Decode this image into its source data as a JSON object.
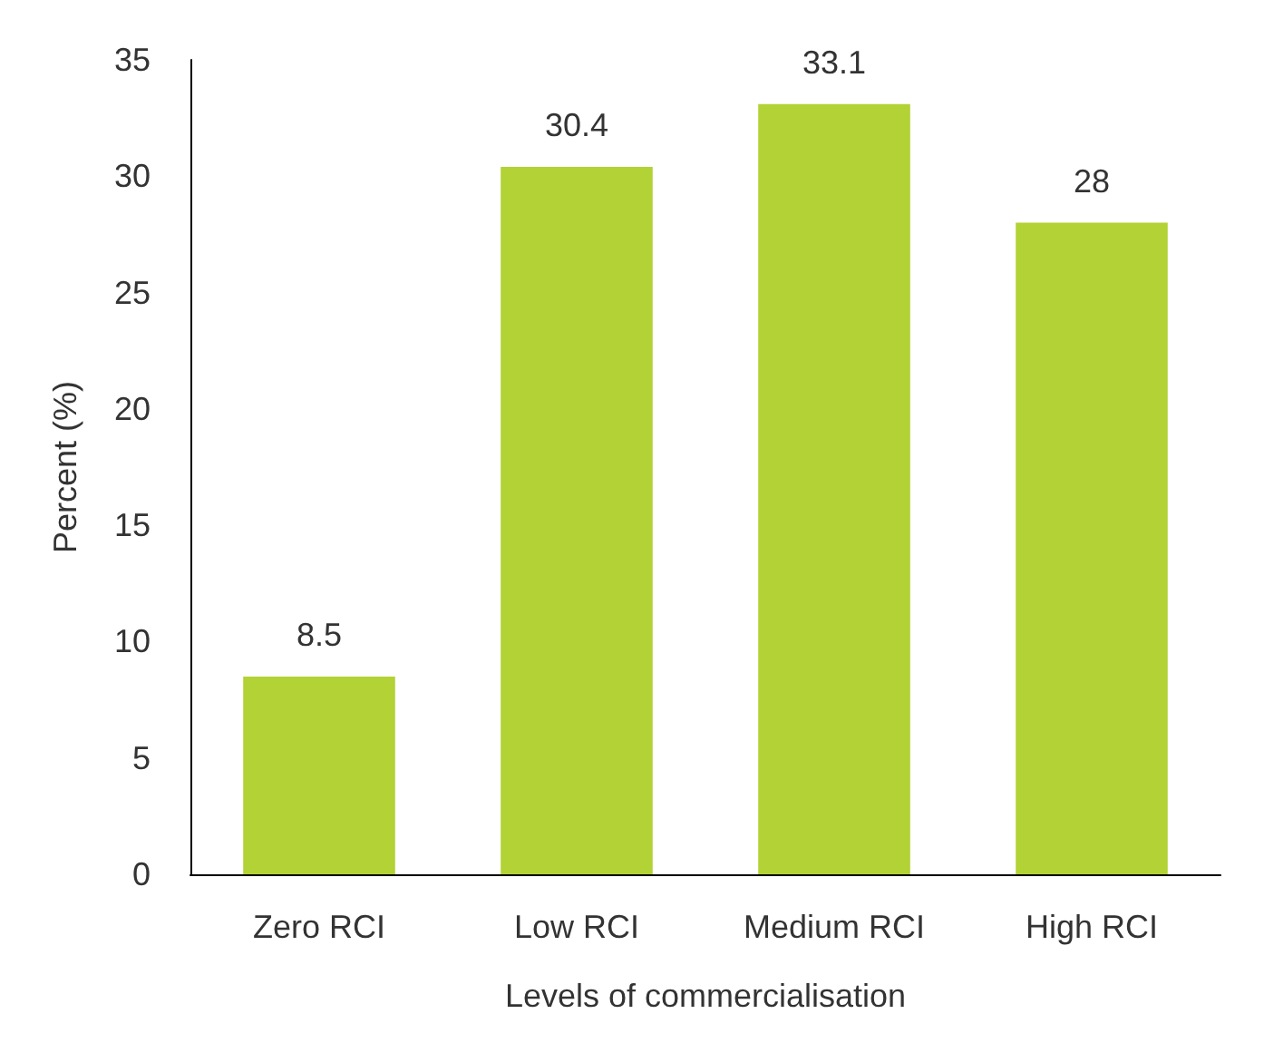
{
  "chart_data": {
    "type": "bar",
    "xlabel": "Levels of commercialisation",
    "ylabel": "Percent (%)",
    "categories": [
      "Zero RCI",
      "Low RCI",
      "Medium RCI",
      "High RCI"
    ],
    "values": [
      8.5,
      30.4,
      33.1,
      28
    ],
    "color": "#b2d235",
    "ylim": [
      0,
      35
    ],
    "yticks": [
      0,
      5,
      10,
      15,
      20,
      25,
      30,
      35
    ],
    "grid": false,
    "data_labels": true
  }
}
